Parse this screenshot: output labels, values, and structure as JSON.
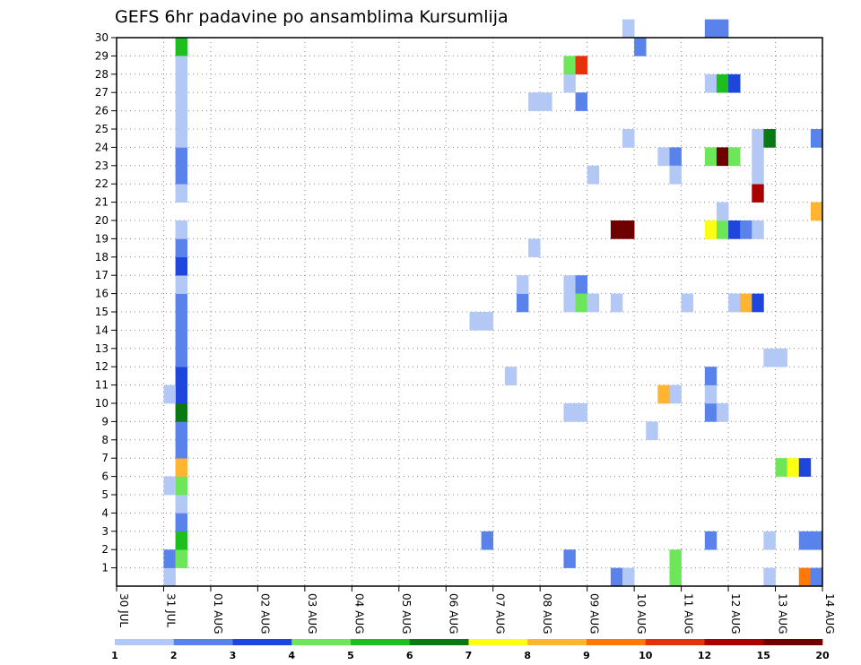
{
  "chart_data": {
    "type": "heatmap",
    "title": "GEFS 6hr padavine po ansamblima Kursumlija",
    "y_ticks": [
      "1",
      "2",
      "3",
      "4",
      "5",
      "6",
      "7",
      "8",
      "9",
      "10",
      "11",
      "12",
      "13",
      "14",
      "15",
      "16",
      "17",
      "18",
      "19",
      "20",
      "21",
      "22",
      "23",
      "24",
      "25",
      "26",
      "27",
      "28",
      "29",
      "30"
    ],
    "x_ticks": [
      "30 JUL",
      "31 JUL",
      "01 AUG",
      "02 AUG",
      "03 AUG",
      "04 AUG",
      "05 AUG",
      "06 AUG",
      "07 AUG",
      "08 AUG",
      "09 AUG",
      "10 AUG",
      "11 AUG",
      "12 AUG",
      "13 AUG",
      "14 AUG"
    ],
    "x_range_steps": [
      0,
      60
    ],
    "y_range": [
      0,
      30
    ],
    "steps_per_day": 4,
    "grid": true,
    "colorbar": {
      "colors": [
        "#b4c8f5",
        "#5a82eb",
        "#1e46dc",
        "#6ee65a",
        "#1ebe1e",
        "#0a7814",
        "#ffff14",
        "#ffb432",
        "#ff780a",
        "#e6320a",
        "#aa0000",
        "#6e0000"
      ],
      "labels": [
        "1",
        "2",
        "3",
        "4",
        "5",
        "6",
        "7",
        "8",
        "9",
        "10",
        "12",
        "15",
        "20"
      ],
      "label_positions": [
        0,
        1,
        2,
        3,
        4,
        5,
        6,
        7,
        8,
        9,
        10,
        11,
        12
      ]
    },
    "cells": [
      [
        4,
        0,
        1
      ],
      [
        4,
        1,
        2
      ],
      [
        5,
        1,
        4
      ],
      [
        5,
        2,
        5
      ],
      [
        5,
        3,
        2
      ],
      [
        5,
        4,
        1
      ],
      [
        5,
        5,
        4
      ],
      [
        4,
        5,
        1
      ],
      [
        5,
        6,
        8
      ],
      [
        5,
        7,
        2
      ],
      [
        5,
        8,
        2
      ],
      [
        5,
        9,
        6
      ],
      [
        5,
        10,
        3
      ],
      [
        4,
        10,
        1
      ],
      [
        5,
        11,
        3
      ],
      [
        5,
        12,
        2
      ],
      [
        5,
        13,
        2
      ],
      [
        5,
        14,
        2
      ],
      [
        5,
        15,
        2
      ],
      [
        5,
        16,
        1
      ],
      [
        5,
        17,
        3
      ],
      [
        5,
        18,
        2
      ],
      [
        5,
        19,
        1
      ],
      [
        5,
        21,
        1
      ],
      [
        5,
        22,
        2
      ],
      [
        5,
        23,
        2
      ],
      [
        5,
        24,
        1
      ],
      [
        5,
        25,
        1
      ],
      [
        5,
        26,
        1
      ],
      [
        5,
        27,
        1
      ],
      [
        5,
        29,
        5
      ],
      [
        5,
        28,
        1
      ],
      [
        31,
        2,
        2
      ],
      [
        30,
        14,
        1
      ],
      [
        31,
        14,
        1
      ],
      [
        33,
        11,
        1
      ],
      [
        34,
        15,
        2
      ],
      [
        34,
        16,
        1
      ],
      [
        35,
        18,
        1
      ],
      [
        35,
        26,
        1
      ],
      [
        36,
        26,
        1
      ],
      [
        38,
        1,
        2
      ],
      [
        38,
        9,
        1
      ],
      [
        39,
        9,
        1
      ],
      [
        38,
        15,
        1
      ],
      [
        38,
        16,
        1
      ],
      [
        39,
        16,
        2
      ],
      [
        39,
        15,
        4
      ],
      [
        40,
        15,
        1
      ],
      [
        38,
        27,
        1
      ],
      [
        38,
        28,
        4
      ],
      [
        39,
        28,
        10
      ],
      [
        39,
        26,
        2
      ],
      [
        40,
        22,
        1
      ],
      [
        42,
        0,
        2
      ],
      [
        43,
        0,
        1
      ],
      [
        42,
        15,
        1
      ],
      [
        42,
        19,
        12
      ],
      [
        43,
        19,
        12
      ],
      [
        43,
        24,
        1
      ],
      [
        43,
        30,
        1
      ],
      [
        44,
        29,
        2
      ],
      [
        45,
        8,
        1
      ],
      [
        46,
        10,
        8
      ],
      [
        47,
        10,
        1
      ],
      [
        46,
        23,
        1
      ],
      [
        47,
        23,
        2
      ],
      [
        47,
        22,
        1
      ],
      [
        47,
        0,
        4
      ],
      [
        47,
        1,
        4
      ],
      [
        48,
        15,
        1
      ],
      [
        50,
        2,
        2
      ],
      [
        50,
        9,
        2
      ],
      [
        51,
        9,
        1
      ],
      [
        50,
        10,
        1
      ],
      [
        50,
        11,
        2
      ],
      [
        50,
        19,
        7
      ],
      [
        51,
        19,
        4
      ],
      [
        51,
        20,
        1
      ],
      [
        52,
        19,
        3
      ],
      [
        53,
        19,
        2
      ],
      [
        54,
        19,
        1
      ],
      [
        50,
        23,
        4
      ],
      [
        51,
        23,
        12
      ],
      [
        52,
        23,
        4
      ],
      [
        50,
        27,
        1
      ],
      [
        51,
        27,
        5
      ],
      [
        52,
        27,
        3
      ],
      [
        50,
        30,
        2
      ],
      [
        51,
        30,
        2
      ],
      [
        52,
        15,
        1
      ],
      [
        53,
        15,
        8
      ],
      [
        54,
        15,
        3
      ],
      [
        54,
        21,
        11
      ],
      [
        54,
        22,
        1
      ],
      [
        54,
        23,
        1
      ],
      [
        54,
        24,
        1
      ],
      [
        55,
        24,
        6
      ],
      [
        55,
        0,
        1
      ],
      [
        55,
        2,
        1
      ],
      [
        55,
        12,
        1
      ],
      [
        56,
        12,
        1
      ],
      [
        56,
        6,
        4
      ],
      [
        57,
        6,
        7
      ],
      [
        58,
        6,
        3
      ],
      [
        58,
        2,
        2
      ],
      [
        59,
        2,
        2
      ],
      [
        58,
        0,
        9
      ],
      [
        59,
        0,
        2
      ],
      [
        59,
        20,
        8
      ],
      [
        59,
        24,
        2
      ]
    ]
  }
}
